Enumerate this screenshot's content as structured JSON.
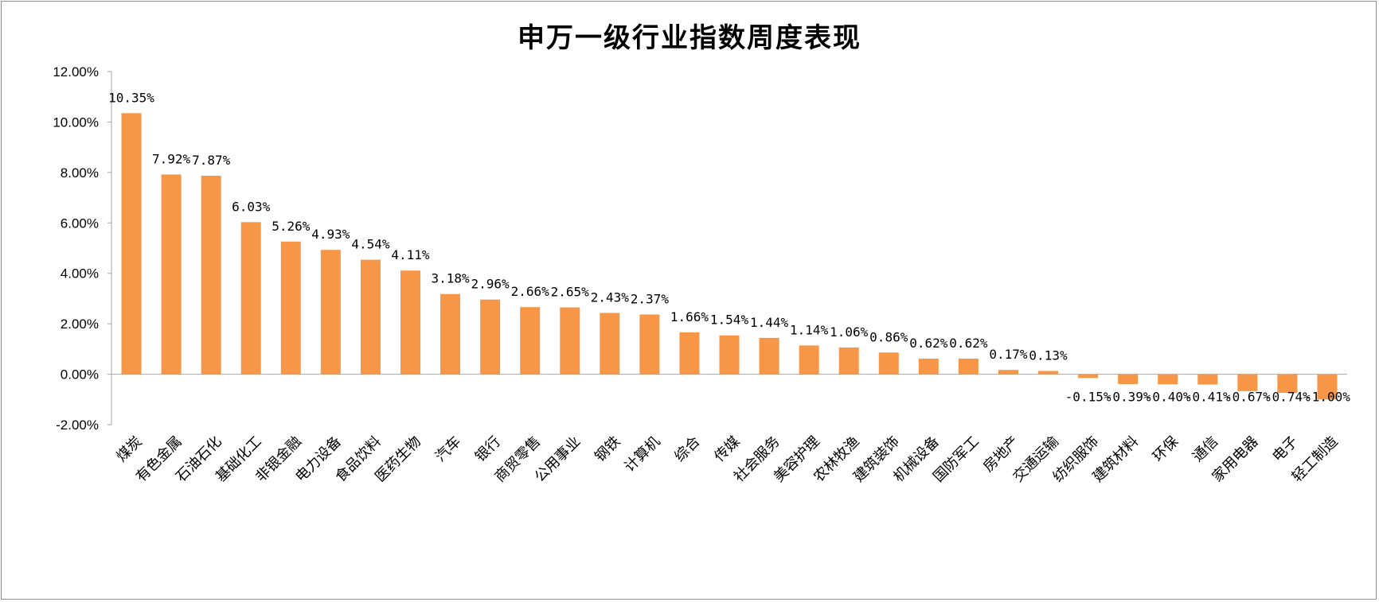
{
  "chart_data": {
    "type": "bar",
    "title": "申万一级行业指数周度表现",
    "xlabel": "",
    "ylabel": "",
    "ylim": [
      -2,
      12
    ],
    "yticks": [
      "12.00%",
      "10.00%",
      "8.00%",
      "6.00%",
      "4.00%",
      "2.00%",
      "0.00%",
      "-2.00%"
    ],
    "ytick_values": [
      12,
      10,
      8,
      6,
      4,
      2,
      0,
      -2
    ],
    "grid": false,
    "legend": "none",
    "bar_color": "#F79646",
    "categories": [
      "煤炭",
      "有色金属",
      "石油石化",
      "基础化工",
      "非银金融",
      "电力设备",
      "食品饮料",
      "医药生物",
      "汽车",
      "银行",
      "商贸零售",
      "公用事业",
      "钢铁",
      "计算机",
      "综合",
      "传媒",
      "社会服务",
      "美容护理",
      "农林牧渔",
      "建筑装饰",
      "机械设备",
      "国防军工",
      "房地产",
      "交通运输",
      "纺织服饰",
      "建筑材料",
      "环保",
      "通信",
      "家用电器",
      "电子",
      "轻工制造"
    ],
    "values": [
      10.35,
      7.92,
      7.87,
      6.03,
      5.26,
      4.93,
      4.54,
      4.11,
      3.18,
      2.96,
      2.66,
      2.65,
      2.43,
      2.37,
      1.66,
      1.54,
      1.44,
      1.14,
      1.06,
      0.86,
      0.62,
      0.62,
      0.17,
      0.13,
      -0.15,
      -0.39,
      -0.4,
      -0.41,
      -0.67,
      -0.74,
      -1.0
    ],
    "data_labels": [
      "10.35%",
      "7.92%",
      "7.87%",
      "6.03%",
      "5.26%",
      "4.93%",
      "4.54%",
      "4.11%",
      "3.18%",
      "2.96%",
      "2.66%",
      "2.65%",
      "2.43%",
      "2.37%",
      "1.66%",
      "1.54%",
      "1.44%",
      "1.14%",
      "1.06%",
      "0.86%",
      "0.62%",
      "0.62%",
      "0.17%",
      "0.13%",
      "-0.15%",
      "-0.39%",
      "-0.40%",
      "-0.41%",
      "-0.67%",
      "-0.74%",
      "-1.00%"
    ]
  }
}
